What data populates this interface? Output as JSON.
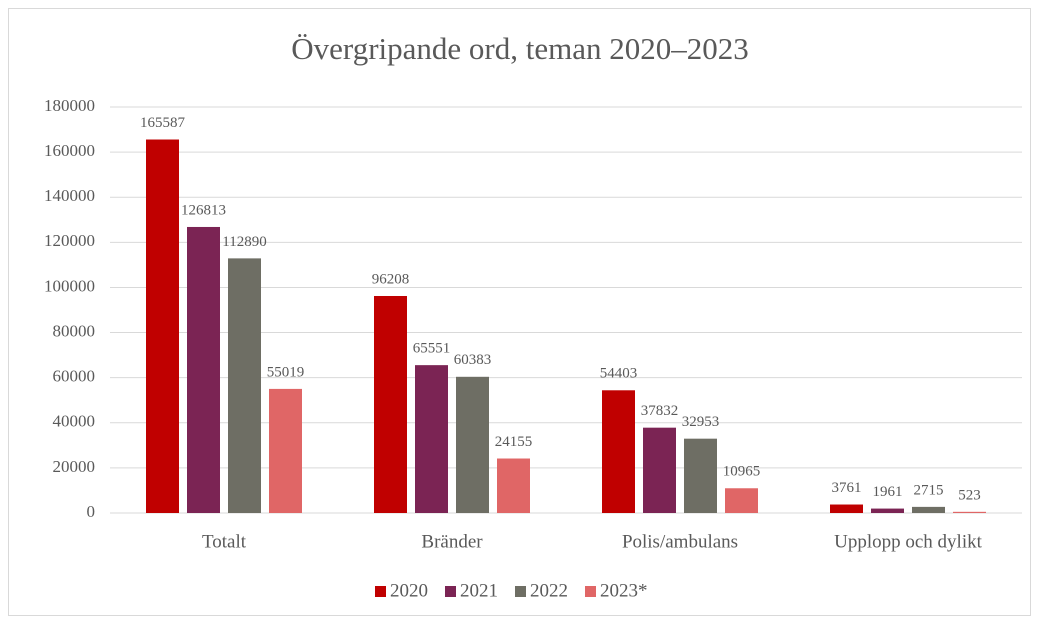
{
  "chart_data": {
    "type": "bar",
    "title": "Övergripande ord, teman 2020–2023",
    "categories": [
      "Totalt",
      "Bränder",
      "Polis/ambulans",
      "Upplopp och dylikt"
    ],
    "series": [
      {
        "name": "2020",
        "color": "#c00000",
        "values": [
          165587,
          96208,
          54403,
          3761
        ]
      },
      {
        "name": "2021",
        "color": "#7b2454",
        "values": [
          126813,
          65551,
          37832,
          1961
        ]
      },
      {
        "name": "2022",
        "color": "#6e6e64",
        "values": [
          112890,
          60383,
          32953,
          2715
        ]
      },
      {
        "name": "2023*",
        "color": "#e06666",
        "values": [
          55019,
          24155,
          10965,
          523
        ]
      }
    ],
    "ylim": [
      0,
      180000
    ],
    "yticks": [
      0,
      20000,
      40000,
      60000,
      80000,
      100000,
      120000,
      140000,
      160000,
      180000
    ],
    "grid": true,
    "legend": "bottom"
  }
}
